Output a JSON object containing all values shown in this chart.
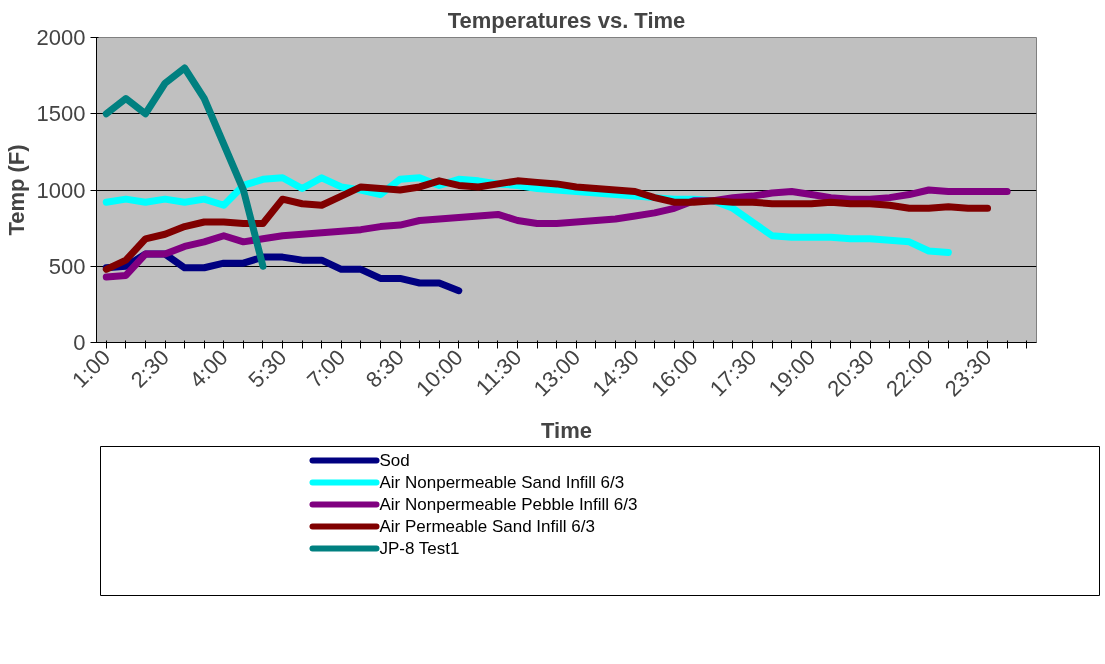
{
  "chart_data": {
    "type": "line",
    "title": "Temperatures vs. Time",
    "xlabel": "Time",
    "ylabel": "Temp (F)",
    "categories": [
      "1:00",
      null,
      null,
      "2:30",
      null,
      null,
      "4:00",
      null,
      null,
      "5:30",
      null,
      null,
      "7:00",
      null,
      null,
      "8:30",
      null,
      null,
      "10:00",
      null,
      null,
      "11:30",
      null,
      null,
      "13:00",
      null,
      null,
      "14:30",
      null,
      null,
      "16:00",
      null,
      null,
      "17:30",
      null,
      null,
      "19:00",
      null,
      null,
      "20:30",
      null,
      null,
      "22:00",
      null,
      null,
      "23:30",
      null,
      null
    ],
    "ylim": [
      0,
      2000
    ],
    "yticks": [
      0,
      500,
      1000,
      1500,
      2000
    ],
    "grid": "y",
    "legend": "bottom",
    "marker": "none",
    "line_style": "solid",
    "series": [
      {
        "name": "Sod",
        "color": "#000080",
        "values": [
          490,
          500,
          580,
          580,
          490,
          490,
          520,
          520,
          560,
          560,
          540,
          540,
          480,
          480,
          420,
          420,
          390,
          390,
          340,
          null,
          null,
          null,
          null,
          null,
          null,
          null,
          null,
          null,
          null,
          null,
          null,
          null,
          null,
          null,
          null,
          null,
          null,
          null,
          null,
          null,
          null,
          null,
          null,
          null,
          null,
          null,
          null,
          null
        ]
      },
      {
        "name": "Air Nonpermeable Sand Infill 6/3",
        "color": "#00ffff",
        "values": [
          920,
          940,
          920,
          940,
          920,
          940,
          900,
          1030,
          1070,
          1080,
          1010,
          1080,
          1020,
          1000,
          970,
          1070,
          1080,
          1030,
          1070,
          1060,
          1040,
          1030,
          1010,
          1000,
          990,
          980,
          970,
          960,
          950,
          940,
          940,
          930,
          880,
          790,
          700,
          690,
          690,
          690,
          680,
          680,
          670,
          660,
          600,
          590,
          null,
          null,
          null,
          null
        ]
      },
      {
        "name": "Air Nonpermeable Pebble Infill 6/3",
        "color": "#800080",
        "values": [
          430,
          440,
          580,
          580,
          630,
          660,
          700,
          660,
          680,
          700,
          710,
          720,
          730,
          740,
          760,
          770,
          800,
          810,
          820,
          830,
          840,
          800,
          780,
          780,
          790,
          800,
          810,
          830,
          850,
          880,
          930,
          930,
          950,
          960,
          980,
          990,
          970,
          950,
          940,
          940,
          950,
          970,
          1000,
          990,
          990,
          990,
          990,
          null
        ]
      },
      {
        "name": "Air Permeable Sand Infill 6/3",
        "color": "#800000",
        "values": [
          480,
          540,
          680,
          710,
          760,
          790,
          790,
          780,
          780,
          940,
          910,
          900,
          960,
          1020,
          1010,
          1000,
          1020,
          1060,
          1030,
          1020,
          1040,
          1060,
          1050,
          1040,
          1020,
          1010,
          1000,
          990,
          950,
          920,
          920,
          930,
          920,
          920,
          910,
          910,
          910,
          920,
          910,
          910,
          900,
          880,
          880,
          890,
          880,
          880,
          null,
          null
        ]
      },
      {
        "name": "JP-8 Test1",
        "color": "#008080",
        "values": [
          1500,
          1600,
          1500,
          1700,
          1800,
          1600,
          1300,
          1000,
          500,
          null,
          null,
          null,
          null,
          null,
          null,
          null,
          null,
          null,
          null,
          null,
          null,
          null,
          null,
          null,
          null,
          null,
          null,
          null,
          null,
          null,
          null,
          null,
          null,
          null,
          null,
          null,
          null,
          null,
          null,
          null,
          null,
          null,
          null,
          null,
          null,
          null,
          null,
          null
        ]
      }
    ]
  }
}
